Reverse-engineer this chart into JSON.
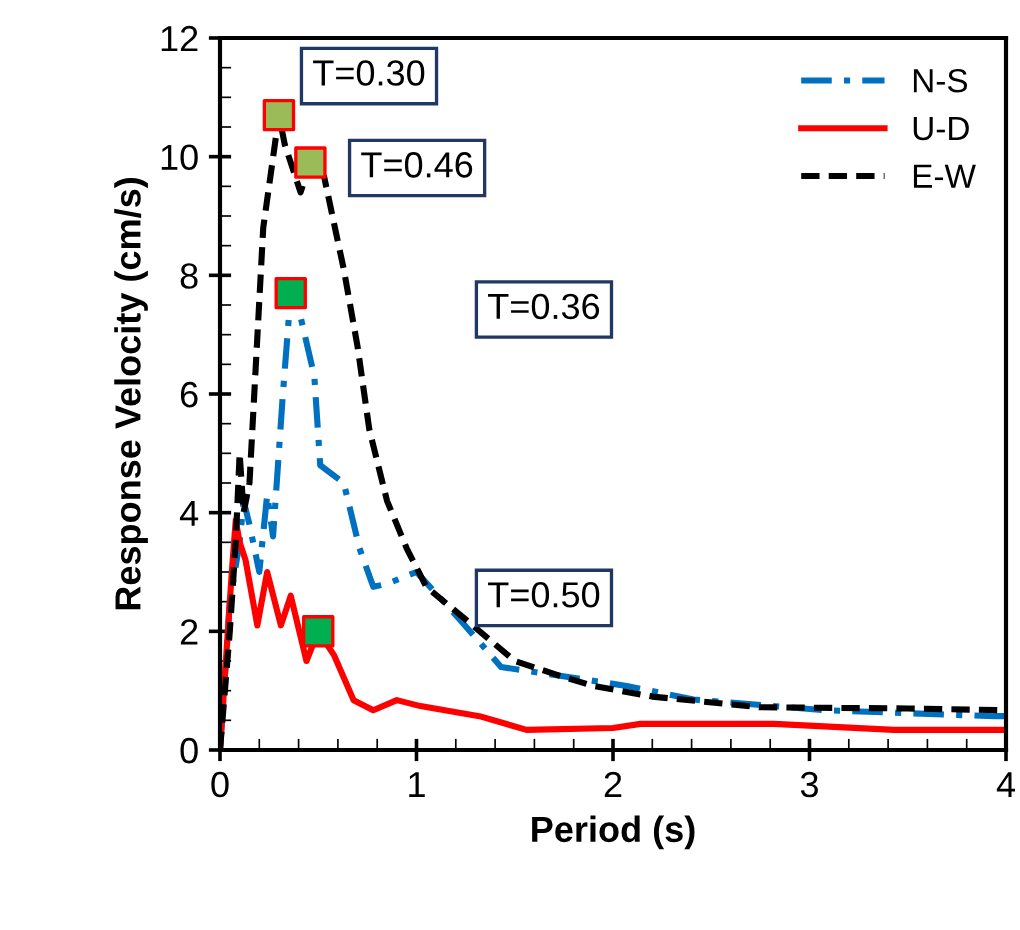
{
  "chart_data": {
    "type": "line",
    "xlabel": "Period (s)",
    "ylabel": "Response Velocity (cm/s)",
    "xlim": [
      0,
      4
    ],
    "ylim": [
      0,
      12
    ],
    "xticks": [
      0,
      1,
      2,
      3,
      4
    ],
    "yticks": [
      0,
      2,
      4,
      6,
      8,
      10,
      12
    ],
    "grid": false,
    "legend": "top right",
    "marker": "none",
    "series": [
      {
        "name": "N-S",
        "color": "#0070c0",
        "line_style": "dashdot",
        "x": [
          0,
          0.05,
          0.1,
          0.12,
          0.15,
          0.2,
          0.24,
          0.27,
          0.32,
          0.36,
          0.41,
          0.48,
          0.51,
          0.63,
          0.71,
          0.78,
          0.85,
          1.0,
          1.22,
          1.43,
          1.73,
          2.07,
          2.41,
          3.08,
          3.5,
          3.94,
          4.0
        ],
        "values": [
          0,
          2.5,
          3.5,
          4.2,
          3.8,
          3.0,
          4.3,
          3.6,
          6.0,
          7.7,
          7.3,
          6.3,
          4.8,
          4.5,
          3.4,
          2.75,
          2.8,
          3.0,
          2.2,
          1.4,
          1.25,
          1.08,
          0.85,
          0.67,
          0.62,
          0.57,
          0.57
        ]
      },
      {
        "name": "U-D",
        "color": "#ff0000",
        "line_style": "solid",
        "x": [
          0,
          0.03,
          0.06,
          0.08,
          0.1,
          0.13,
          0.19,
          0.24,
          0.31,
          0.36,
          0.44,
          0.5,
          0.58,
          0.68,
          0.78,
          0.9,
          1.02,
          1.32,
          1.56,
          2.0,
          2.14,
          2.82,
          3.43,
          4.0
        ],
        "values": [
          0,
          1.5,
          3.0,
          3.87,
          3.5,
          3.2,
          2.1,
          3.0,
          2.1,
          2.6,
          1.5,
          2.0,
          1.6,
          0.84,
          0.67,
          0.84,
          0.74,
          0.57,
          0.34,
          0.37,
          0.44,
          0.44,
          0.34,
          0.34
        ]
      },
      {
        "name": "E-W",
        "color": "#000000",
        "line_style": "dashed",
        "x": [
          0,
          0.05,
          0.08,
          0.1,
          0.12,
          0.15,
          0.22,
          0.3,
          0.33,
          0.41,
          0.46,
          0.53,
          0.63,
          0.7,
          0.76,
          0.85,
          0.95,
          1.05,
          1.25,
          1.5,
          1.73,
          1.9,
          2.2,
          2.75,
          3.5,
          4.0
        ],
        "values": [
          0,
          2.0,
          3.5,
          5.0,
          4.0,
          4.5,
          8.8,
          10.7,
          10.2,
          9.4,
          9.9,
          9.66,
          8.1,
          6.8,
          5.4,
          4.2,
          3.4,
          2.75,
          2.2,
          1.5,
          1.25,
          1.08,
          0.9,
          0.72,
          0.7,
          0.67
        ]
      },
      {
        "type": "scatter",
        "marker": "square",
        "x": [
          0.3,
          0.46,
          0.36,
          0.5
        ],
        "values": [
          10.7,
          9.9,
          7.7,
          2.0
        ],
        "colors": [
          "#9bbb59",
          "#9bbb59",
          "#00b050",
          "#00b050"
        ]
      }
    ],
    "annotations": [
      {
        "text": "T=0.30",
        "x": 0.3,
        "y": 10.7
      },
      {
        "text": "T=0.46",
        "x": 0.46,
        "y": 9.9
      },
      "T=0.36",
      "T=0.50"
    ]
  }
}
